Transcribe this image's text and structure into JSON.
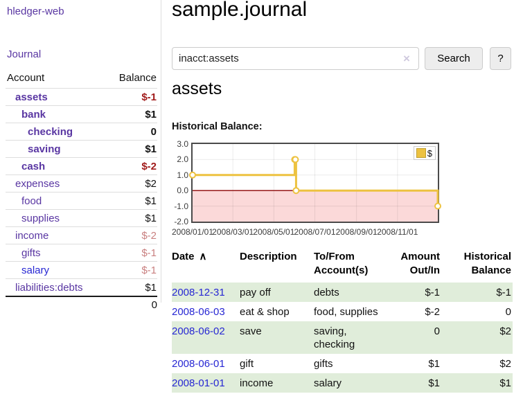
{
  "app": {
    "title": "hledger-web",
    "nav_journal": "Journal"
  },
  "sidebar": {
    "headers": {
      "account": "Account",
      "balance": "Balance"
    },
    "accounts": [
      {
        "name": "assets",
        "balance": "$-1",
        "indent": 1,
        "bold": true,
        "neg": "strong"
      },
      {
        "name": "bank",
        "balance": "$1",
        "indent": 2,
        "bold": true,
        "neg": "none"
      },
      {
        "name": "checking",
        "balance": "0",
        "indent": 3,
        "bold": true,
        "neg": "none"
      },
      {
        "name": "saving",
        "balance": "$1",
        "indent": 3,
        "bold": true,
        "neg": "none"
      },
      {
        "name": "cash",
        "balance": "$-2",
        "indent": 2,
        "bold": true,
        "neg": "strong"
      },
      {
        "name": "expenses",
        "balance": "$2",
        "indent": 1,
        "bold": false,
        "neg": "none"
      },
      {
        "name": "food",
        "balance": "$1",
        "indent": 2,
        "bold": false,
        "neg": "none"
      },
      {
        "name": "supplies",
        "balance": "$1",
        "indent": 2,
        "bold": false,
        "neg": "none"
      },
      {
        "name": "income",
        "balance": "$-2",
        "indent": 1,
        "bold": false,
        "neg": "dim"
      },
      {
        "name": "gifts",
        "balance": "$-1",
        "indent": 2,
        "bold": false,
        "neg": "dim"
      },
      {
        "name": "salary",
        "balance": "$-1",
        "indent": 2,
        "bold": false,
        "neg": "dim",
        "link": "blue"
      },
      {
        "name": "liabilities:debts",
        "balance": "$1",
        "indent": 1,
        "bold": false,
        "neg": "none"
      }
    ],
    "total": "0"
  },
  "header": {
    "title": "sample.journal"
  },
  "search": {
    "value": "inacct:assets",
    "clear_icon": "×",
    "button_label": "Search",
    "help_label": "?"
  },
  "account_page": {
    "heading": "assets",
    "chart_label": "Historical Balance:"
  },
  "chart_data": {
    "type": "line",
    "title": "Historical Balance:",
    "step": true,
    "series": [
      {
        "name": "$",
        "color": "#edc240",
        "points": [
          [
            "2008-01-01",
            1
          ],
          [
            "2008-06-01",
            2
          ],
          [
            "2008-06-02",
            2
          ],
          [
            "2008-06-03",
            0
          ],
          [
            "2008-12-31",
            -1
          ]
        ]
      }
    ],
    "x_start": "2008-01-01",
    "x_days": 365,
    "x_ticks": [
      "2008/01/01",
      "2008/03/01",
      "2008/05/01",
      "2008/07/01",
      "2008/09/01",
      "2008/11/01"
    ],
    "y_ticks": [
      "3.0",
      "2.0",
      "1.0",
      "0.0",
      "-1.0",
      "-2.0"
    ],
    "ylim": [
      -2,
      3
    ],
    "grid": true,
    "negative_region_color": "#fbd9d9",
    "zero_line_color": "#8b0000",
    "legend": {
      "label": "$",
      "position": "top-right"
    }
  },
  "register": {
    "headers": {
      "date": "Date",
      "description": "Description",
      "accounts": "To/From Account(s)",
      "amount": "Amount Out/In",
      "balance": "Historical Balance"
    },
    "sort_icon": "∧",
    "rows": [
      {
        "date": "2008-12-31",
        "description": "pay off",
        "accounts": "debts",
        "amount": "$-1",
        "balance": "$-1",
        "amount_neg": true,
        "balance_neg": true
      },
      {
        "date": "2008-06-03",
        "description": "eat & shop",
        "accounts": "food, supplies",
        "amount": "$-2",
        "balance": "0",
        "amount_neg": true,
        "balance_neg": false
      },
      {
        "date": "2008-06-02",
        "description": "save",
        "accounts": "saving,\nchecking",
        "amount": "0",
        "balance": "$2",
        "amount_neg": false,
        "balance_neg": false
      },
      {
        "date": "2008-06-01",
        "description": "gift",
        "accounts": "gifts",
        "amount": "$1",
        "balance": "$2",
        "amount_neg": false,
        "balance_neg": false
      },
      {
        "date": "2008-01-01",
        "description": "income",
        "accounts": "salary",
        "amount": "$1",
        "balance": "$1",
        "amount_neg": false,
        "balance_neg": false
      }
    ]
  }
}
